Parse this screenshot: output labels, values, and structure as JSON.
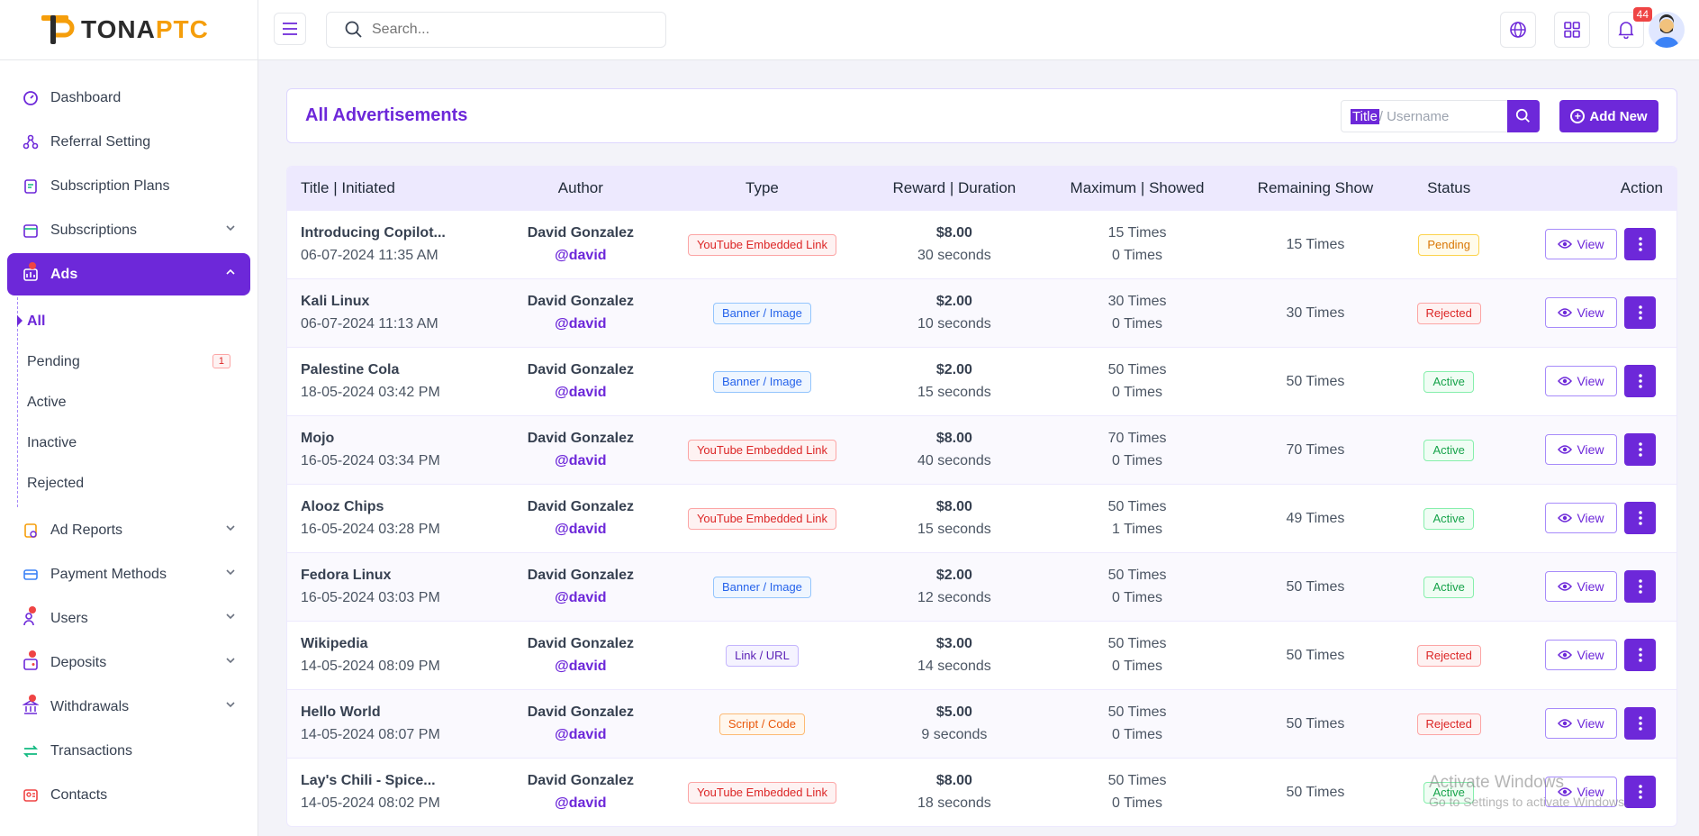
{
  "app": {
    "logo_text_main": "TONA",
    "logo_text_accent": "PTC"
  },
  "topbar": {
    "search_placeholder": "Search...",
    "notification_count": "44"
  },
  "sidebar": {
    "items": [
      {
        "label": "Dashboard",
        "icon": "dashboard-icon"
      },
      {
        "label": "Referral Setting",
        "icon": "referral-icon"
      },
      {
        "label": "Subscription Plans",
        "icon": "plans-icon"
      },
      {
        "label": "Subscriptions",
        "icon": "subscriptions-icon"
      },
      {
        "label": "Ads",
        "icon": "ads-icon"
      },
      {
        "label": "Ad Reports",
        "icon": "ad-reports-icon"
      },
      {
        "label": "Payment Methods",
        "icon": "payment-icon"
      },
      {
        "label": "Users",
        "icon": "users-icon"
      },
      {
        "label": "Deposits",
        "icon": "deposits-icon"
      },
      {
        "label": "Withdrawals",
        "icon": "withdrawals-icon"
      },
      {
        "label": "Transactions",
        "icon": "transactions-icon"
      },
      {
        "label": "Contacts",
        "icon": "contacts-icon"
      }
    ],
    "ads_sub": [
      {
        "label": "All"
      },
      {
        "label": "Pending",
        "count": "1"
      },
      {
        "label": "Active"
      },
      {
        "label": "Inactive"
      },
      {
        "label": "Rejected"
      }
    ]
  },
  "header": {
    "title": "All Advertisements",
    "filter_highlight": "Title",
    "filter_rest": "/ Username",
    "add_label": "Add New"
  },
  "table": {
    "columns": [
      "Title | Initiated",
      "Author",
      "Type",
      "Reward | Duration",
      "Maximum | Showed",
      "Remaining Show",
      "Status",
      "Action"
    ],
    "view_label": "View",
    "rows": [
      {
        "title": "Introducing Copilot...",
        "date": "06-07-2024 11:35 AM",
        "author": "David Gonzalez",
        "username": "@david",
        "type": "YouTube Embedded Link",
        "type_color": "red",
        "reward": "$8.00",
        "duration": "30 seconds",
        "maximum": "15 Times",
        "showed": "0 Times",
        "remaining": "15 Times",
        "status": "Pending",
        "status_color": "amber"
      },
      {
        "title": "Kali Linux",
        "date": "06-07-2024 11:13 AM",
        "author": "David Gonzalez",
        "username": "@david",
        "type": "Banner / Image",
        "type_color": "blue",
        "reward": "$2.00",
        "duration": "10 seconds",
        "maximum": "30 Times",
        "showed": "0 Times",
        "remaining": "30 Times",
        "status": "Rejected",
        "status_color": "red"
      },
      {
        "title": "Palestine Cola",
        "date": "18-05-2024 03:42 PM",
        "author": "David Gonzalez",
        "username": "@david",
        "type": "Banner / Image",
        "type_color": "blue",
        "reward": "$2.00",
        "duration": "15 seconds",
        "maximum": "50 Times",
        "showed": "0 Times",
        "remaining": "50 Times",
        "status": "Active",
        "status_color": "green"
      },
      {
        "title": "Mojo",
        "date": "16-05-2024 03:34 PM",
        "author": "David Gonzalez",
        "username": "@david",
        "type": "YouTube Embedded Link",
        "type_color": "red",
        "reward": "$8.00",
        "duration": "40 seconds",
        "maximum": "70 Times",
        "showed": "0 Times",
        "remaining": "70 Times",
        "status": "Active",
        "status_color": "green"
      },
      {
        "title": "Alooz Chips",
        "date": "16-05-2024 03:28 PM",
        "author": "David Gonzalez",
        "username": "@david",
        "type": "YouTube Embedded Link",
        "type_color": "red",
        "reward": "$8.00",
        "duration": "15 seconds",
        "maximum": "50 Times",
        "showed": "1 Times",
        "remaining": "49 Times",
        "status": "Active",
        "status_color": "green"
      },
      {
        "title": "Fedora Linux",
        "date": "16-05-2024 03:03 PM",
        "author": "David Gonzalez",
        "username": "@david",
        "type": "Banner / Image",
        "type_color": "blue",
        "reward": "$2.00",
        "duration": "12 seconds",
        "maximum": "50 Times",
        "showed": "0 Times",
        "remaining": "50 Times",
        "status": "Active",
        "status_color": "green"
      },
      {
        "title": "Wikipedia",
        "date": "14-05-2024 08:09 PM",
        "author": "David Gonzalez",
        "username": "@david",
        "type": "Link / URL",
        "type_color": "purple",
        "reward": "$3.00",
        "duration": "14 seconds",
        "maximum": "50 Times",
        "showed": "0 Times",
        "remaining": "50 Times",
        "status": "Rejected",
        "status_color": "red"
      },
      {
        "title": "Hello World",
        "date": "14-05-2024 08:07 PM",
        "author": "David Gonzalez",
        "username": "@david",
        "type": "Script / Code",
        "type_color": "orange",
        "reward": "$5.00",
        "duration": "9 seconds",
        "maximum": "50 Times",
        "showed": "0 Times",
        "remaining": "50 Times",
        "status": "Rejected",
        "status_color": "red"
      },
      {
        "title": "Lay's Chili - Spice...",
        "date": "14-05-2024 08:02 PM",
        "author": "David Gonzalez",
        "username": "@david",
        "type": "YouTube Embedded Link",
        "type_color": "red",
        "reward": "$8.00",
        "duration": "18 seconds",
        "maximum": "50 Times",
        "showed": "0 Times",
        "remaining": "50 Times",
        "status": "Active",
        "status_color": "green"
      }
    ]
  },
  "watermark": {
    "line1": "Activate Windows",
    "line2": "Go to Settings to activate Windows."
  },
  "colors": {
    "accent": "#6d28d9"
  }
}
